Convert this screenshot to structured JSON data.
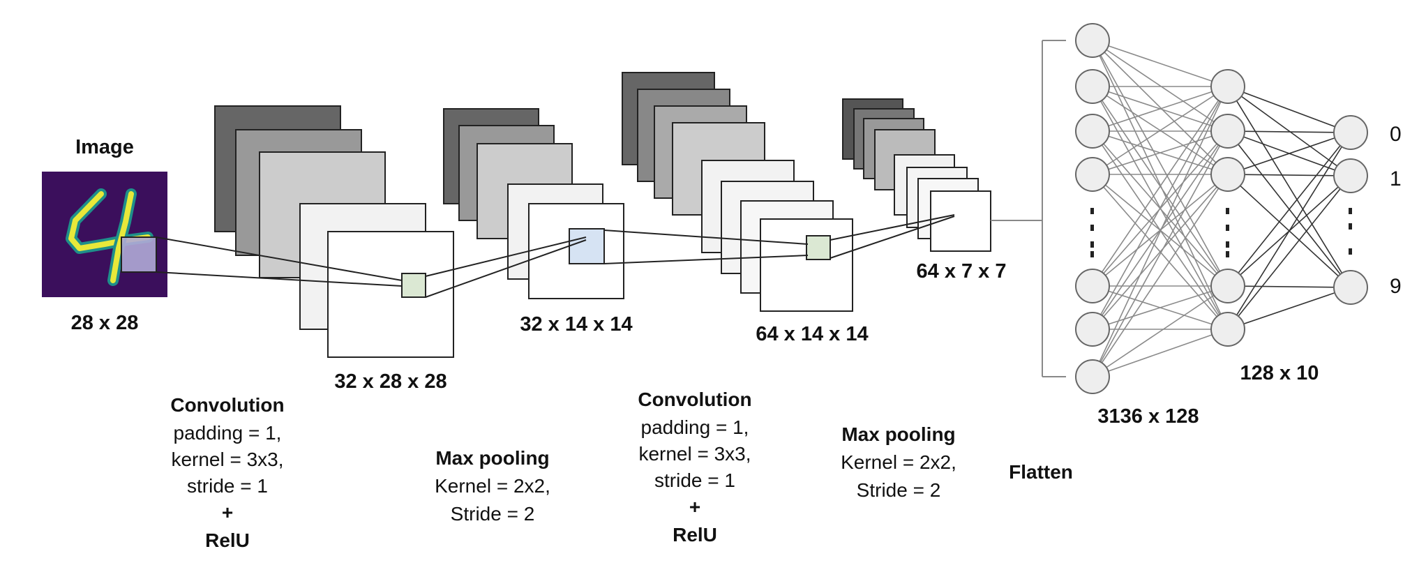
{
  "input": {
    "title": "Image",
    "size": "28 x 28"
  },
  "volumes": {
    "conv1_output": "32 x 28 x 28",
    "pool1_output": "32 x 14 x 14",
    "conv2_output": "64 x 14 x 14",
    "pool2_output": "64 x 7 x 7"
  },
  "operations": {
    "conv1": {
      "title": "Convolution",
      "line1": "padding = 1,",
      "line2": "kernel = 3x3,",
      "line3": "stride = 1",
      "plus": "+",
      "activation": "RelU"
    },
    "pool1": {
      "title": "Max pooling",
      "line1": "Kernel = 2x2,",
      "line2": "Stride = 2"
    },
    "conv2": {
      "title": "Convolution",
      "line1": "padding = 1,",
      "line2": "kernel = 3x3,",
      "line3": "stride = 1",
      "plus": "+",
      "activation": "RelU"
    },
    "pool2": {
      "title": "Max pooling",
      "line1": "Kernel = 2x2,",
      "line2": "Stride = 2"
    },
    "flatten": {
      "title": "Flatten"
    }
  },
  "dense": {
    "layer1": "3136 x 128",
    "layer2": "128 x 10"
  },
  "outputs": {
    "first": "0",
    "second": "1",
    "last": "9"
  },
  "colors": {
    "image_bg": "#3b0f5c",
    "digit_stroke": "#e8e83a",
    "input_kernel": "#b0aad6",
    "green_kernel": "#dbe8d3",
    "blue_kernel": "#d6e3f3",
    "node_fill": "#eeeeee",
    "node_stroke": "#666666"
  }
}
